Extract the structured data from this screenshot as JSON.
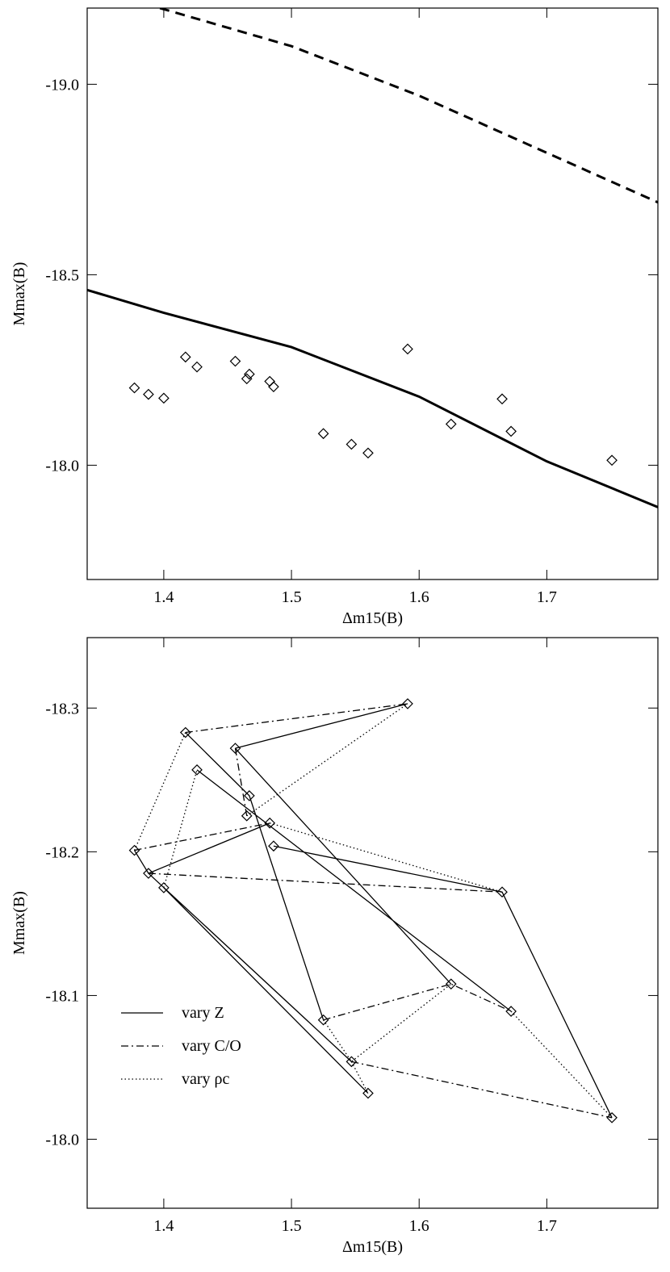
{
  "chart_data": [
    {
      "type": "scatter",
      "xlabel": "Δm15(B)",
      "ylabel": "Mmax(B)",
      "xlim": [
        1.34,
        1.787
      ],
      "ylim": [
        -17.7,
        -19.2
      ],
      "xticks": [
        1.4,
        1.5,
        1.6,
        1.7
      ],
      "yticks": [
        {
          "value": -19,
          "label": "-19.0"
        },
        {
          "value": -18.5,
          "label": "-18.5"
        },
        {
          "value": -18,
          "label": "-18.0"
        }
      ],
      "series": [
        {
          "style": "diamond",
          "color": "#000000",
          "x": [
            1.377,
            1.388,
            1.4,
            1.417,
            1.426,
            1.456,
            1.467,
            1.465,
            1.483,
            1.486,
            1.525,
            1.547,
            1.56,
            1.591,
            1.625,
            1.665,
            1.672,
            1.751
          ],
          "y": [
            -18.203,
            -18.186,
            -18.176,
            -18.284,
            -18.258,
            -18.273,
            -18.239,
            -18.227,
            -18.22,
            -18.206,
            -18.083,
            -18.055,
            -18.032,
            -18.305,
            -18.108,
            -18.174,
            -18.089,
            -18.013
          ]
        },
        {
          "style": "thick-solid",
          "color": "#000000",
          "x": [
            1.34,
            1.4,
            1.5,
            1.6,
            1.7,
            1.787
          ],
          "y": [
            -18.46,
            -18.4,
            -18.31,
            -18.18,
            -18.01,
            -17.89
          ]
        },
        {
          "style": "thick-dashed",
          "color": "#000000",
          "x": [
            1.397,
            1.5,
            1.6,
            1.7,
            1.787
          ],
          "y": [
            -19.2,
            -19.1,
            -18.97,
            -18.82,
            -18.69
          ]
        }
      ]
    },
    {
      "type": "line",
      "xlabel": "Δm15(B)",
      "ylabel": "Mmax(B)",
      "xlim": [
        1.34,
        1.787
      ],
      "ylim": [
        -17.952,
        -18.349
      ],
      "xticks": [
        1.4,
        1.5,
        1.6,
        1.7
      ],
      "yticks": [
        {
          "value": -18.3,
          "label": "-18.3"
        },
        {
          "value": -18.2,
          "label": "-18.2"
        },
        {
          "value": -18.1,
          "label": "-18.1"
        },
        {
          "value": -18,
          "label": "-18.0"
        }
      ],
      "legend": "lower left",
      "series": [
        {
          "name": "vary Z",
          "style": "solid",
          "color": "#000000",
          "x": [
            1.377,
            1.388,
            1.483,
            null,
            1.388,
            1.547,
            null,
            1.4,
            1.56,
            null,
            1.417,
            1.467,
            1.525,
            null,
            1.426,
            1.672,
            null,
            1.456,
            1.625,
            null,
            1.456,
            1.591,
            null,
            1.486,
            1.665,
            1.751
          ],
          "y": [
            -18.201,
            -18.185,
            -18.22,
            null,
            -18.185,
            -18.054,
            null,
            -18.175,
            -18.032,
            null,
            -18.283,
            -18.239,
            -18.083,
            null,
            -18.257,
            -18.089,
            null,
            -18.272,
            -18.108,
            null,
            -18.272,
            -18.303,
            null,
            -18.204,
            -18.172,
            -18.015
          ]
        },
        {
          "name": "vary C/O",
          "style": "dashed",
          "color": "#000000",
          "x": [
            1.417,
            1.591,
            null,
            1.456,
            1.465,
            null,
            1.377,
            1.483,
            null,
            1.388,
            1.665,
            null,
            1.525,
            1.625,
            1.672,
            null,
            1.547,
            1.751
          ],
          "y": [
            -18.283,
            -18.303,
            null,
            -18.272,
            -18.225,
            null,
            -18.201,
            -18.22,
            null,
            -18.185,
            -18.172,
            null,
            -18.083,
            -18.108,
            -18.089,
            null,
            -18.054,
            -18.015
          ]
        },
        {
          "name": "vary ρc",
          "style": "dotted",
          "color": "#000000",
          "x": [
            1.377,
            1.417,
            null,
            1.4,
            1.426,
            null,
            1.465,
            1.591,
            null,
            1.483,
            1.665,
            null,
            1.525,
            1.547,
            1.625,
            null,
            1.547,
            1.56,
            null,
            1.672,
            1.751
          ],
          "y": [
            -18.201,
            -18.283,
            null,
            -18.175,
            -18.257,
            null,
            -18.225,
            -18.303,
            null,
            -18.22,
            -18.172,
            null,
            -18.083,
            -18.054,
            -18.108,
            null,
            -18.054,
            -18.032,
            null,
            -18.089,
            -18.015
          ]
        },
        {
          "style": "diamond",
          "color": "#000000",
          "x": [
            1.377,
            1.388,
            1.4,
            1.417,
            1.426,
            1.456,
            1.467,
            1.465,
            1.483,
            1.486,
            1.525,
            1.547,
            1.56,
            1.591,
            1.625,
            1.665,
            1.672,
            1.751
          ],
          "y": [
            -18.201,
            -18.185,
            -18.175,
            -18.283,
            -18.257,
            -18.272,
            -18.239,
            -18.225,
            -18.22,
            -18.204,
            -18.083,
            -18.054,
            -18.032,
            -18.303,
            -18.108,
            -18.172,
            -18.089,
            -18.015
          ]
        }
      ]
    }
  ]
}
